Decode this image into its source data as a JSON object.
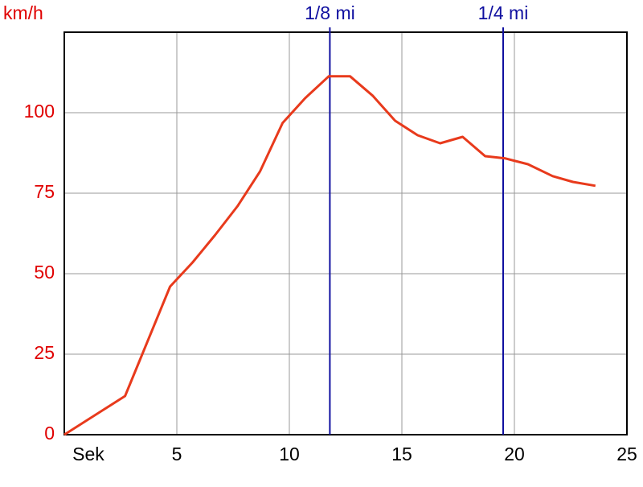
{
  "chart_data": {
    "type": "line",
    "y_label": "km/h",
    "x": [
      0,
      2.7,
      4.7,
      5.7,
      6.7,
      7.7,
      8.7,
      9.7,
      10.7,
      11.75,
      12.7,
      13.7,
      14.7,
      15.7,
      16.7,
      17.7,
      18.7,
      19.6,
      20.6,
      21.7,
      22.6,
      23.6
    ],
    "series": [
      {
        "color": "#e83a1c",
        "values": [
          0,
          12,
          46,
          53.5,
          62,
          71,
          81.8,
          96.8,
          104.5,
          111.3,
          111.3,
          105.3,
          97.5,
          93,
          90.5,
          92.5,
          86.5,
          85.8,
          84,
          80.3,
          78.5,
          77.3
        ]
      }
    ],
    "markers": [
      {
        "label": "1/8 mi",
        "x": 11.8,
        "color": "#1010a0"
      },
      {
        "label": "1/4 mi",
        "x": 19.5,
        "color": "#1010a0"
      }
    ],
    "xlim": [
      0,
      25
    ],
    "xticks": [
      {
        "value": 0,
        "label": "Sek"
      },
      5,
      10,
      15,
      20,
      25
    ],
    "ylim": [
      0,
      125
    ],
    "yticks": [
      0,
      25,
      50,
      75,
      100
    ],
    "grid": true,
    "y_tick_color": "#e00000"
  }
}
